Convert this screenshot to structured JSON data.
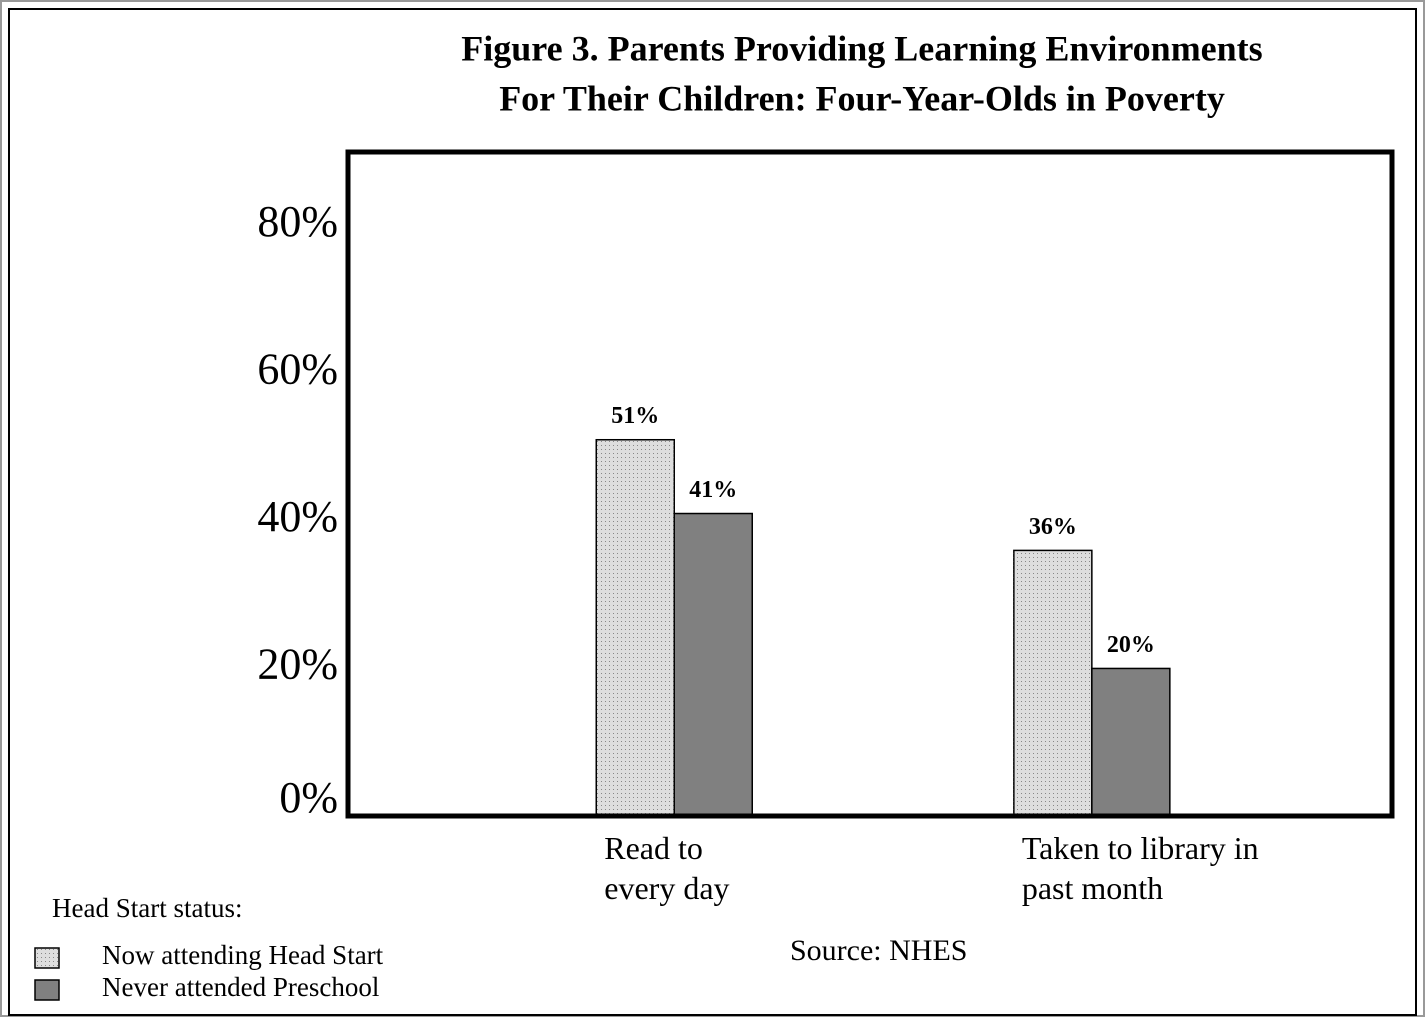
{
  "chart_data": {
    "type": "bar",
    "title": "Figure 3.  Parents Providing Learning Environments",
    "subtitle": "For Their Children:  Four-Year-Olds in Poverty",
    "categories": [
      "Read to every day",
      "Taken to library in past month"
    ],
    "series": [
      {
        "name": "Now attending Head Start",
        "color": "#dedede",
        "values": [
          51,
          36
        ],
        "value_labels": [
          "51%",
          "36%"
        ]
      },
      {
        "name": "Never attended Preschool",
        "color": "#808080",
        "values": [
          41,
          20
        ],
        "value_labels": [
          "41%",
          "20%"
        ]
      }
    ],
    "ylim": [
      0,
      90
    ],
    "yticks": [
      {
        "value": 0,
        "label": "0%"
      },
      {
        "value": 20,
        "label": "20%"
      },
      {
        "value": 40,
        "label": "40%"
      },
      {
        "value": 60,
        "label": "60%"
      },
      {
        "value": 80,
        "label": "80%"
      }
    ],
    "legend_title": "Head Start status:",
    "legend": "bottom-left",
    "source": "Source:  NHES"
  }
}
